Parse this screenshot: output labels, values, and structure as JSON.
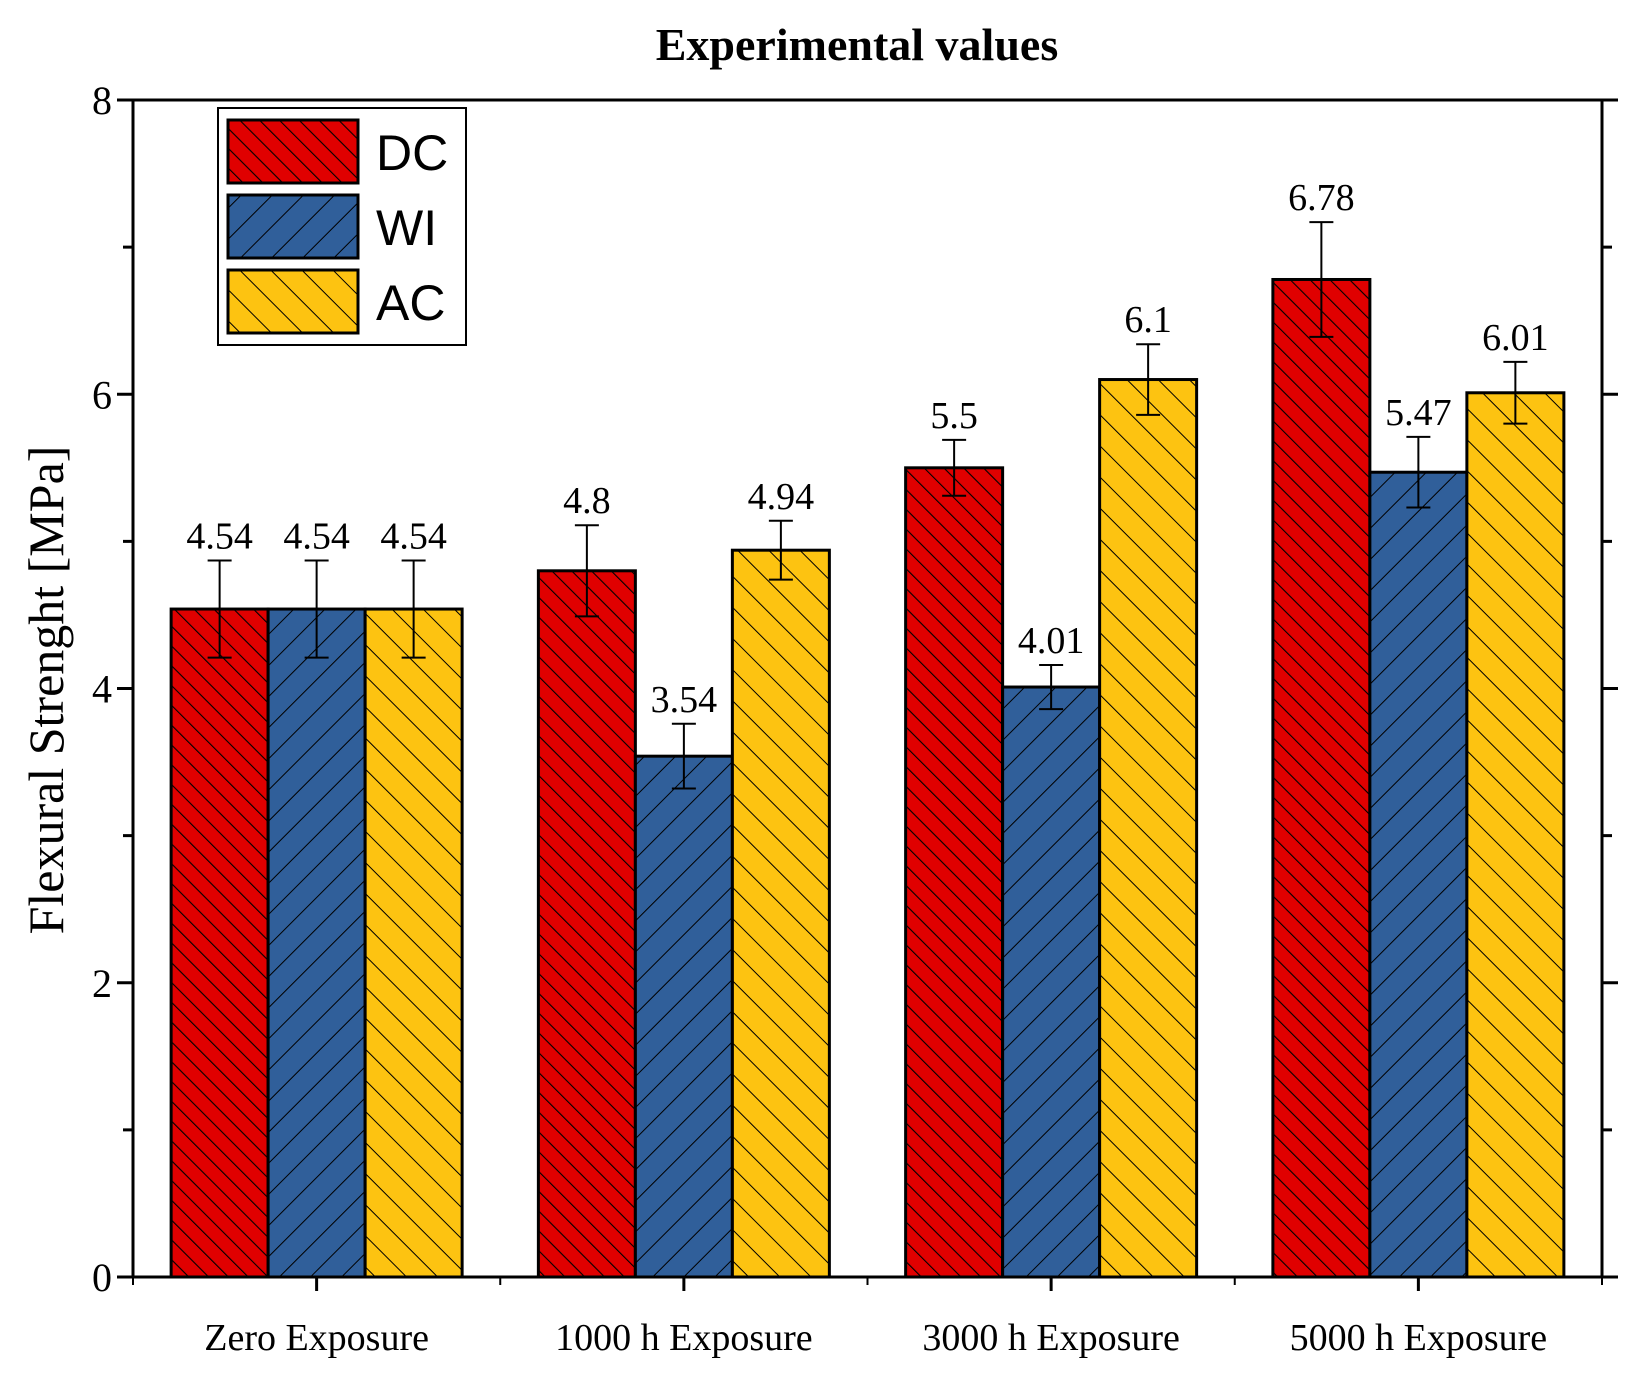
{
  "chart_data": {
    "type": "bar",
    "title": "Experimental values",
    "xlabel": "",
    "ylabel": "Flexural Strenght [MPa]",
    "ylim": [
      0,
      8
    ],
    "yticks": [
      0,
      2,
      4,
      6,
      8
    ],
    "categories": [
      "Zero Exposure",
      "1000 h Exposure",
      "3000 h Exposure",
      "5000 h Exposure"
    ],
    "series": [
      {
        "name": "DC",
        "color": "#e00000",
        "values": [
          4.54,
          4.8,
          5.5,
          6.78
        ],
        "errors": [
          0.33,
          0.31,
          0.19,
          0.39
        ],
        "labels": [
          "4.54",
          "4.8",
          "5.5",
          "6.78"
        ]
      },
      {
        "name": "WI",
        "color": "#305f9a",
        "values": [
          4.54,
          3.54,
          4.01,
          5.47
        ],
        "errors": [
          0.33,
          0.22,
          0.15,
          0.24
        ],
        "labels": [
          "4.54",
          "3.54",
          "4.01",
          "5.47"
        ]
      },
      {
        "name": "AC",
        "color": "#fdc311",
        "values": [
          4.54,
          4.94,
          6.1,
          6.01
        ],
        "errors": [
          0.33,
          0.2,
          0.24,
          0.21
        ],
        "labels": [
          "4.54",
          "4.94",
          "6.1",
          "6.01"
        ]
      }
    ],
    "legend": {
      "position": "top-left"
    },
    "grid": false
  }
}
